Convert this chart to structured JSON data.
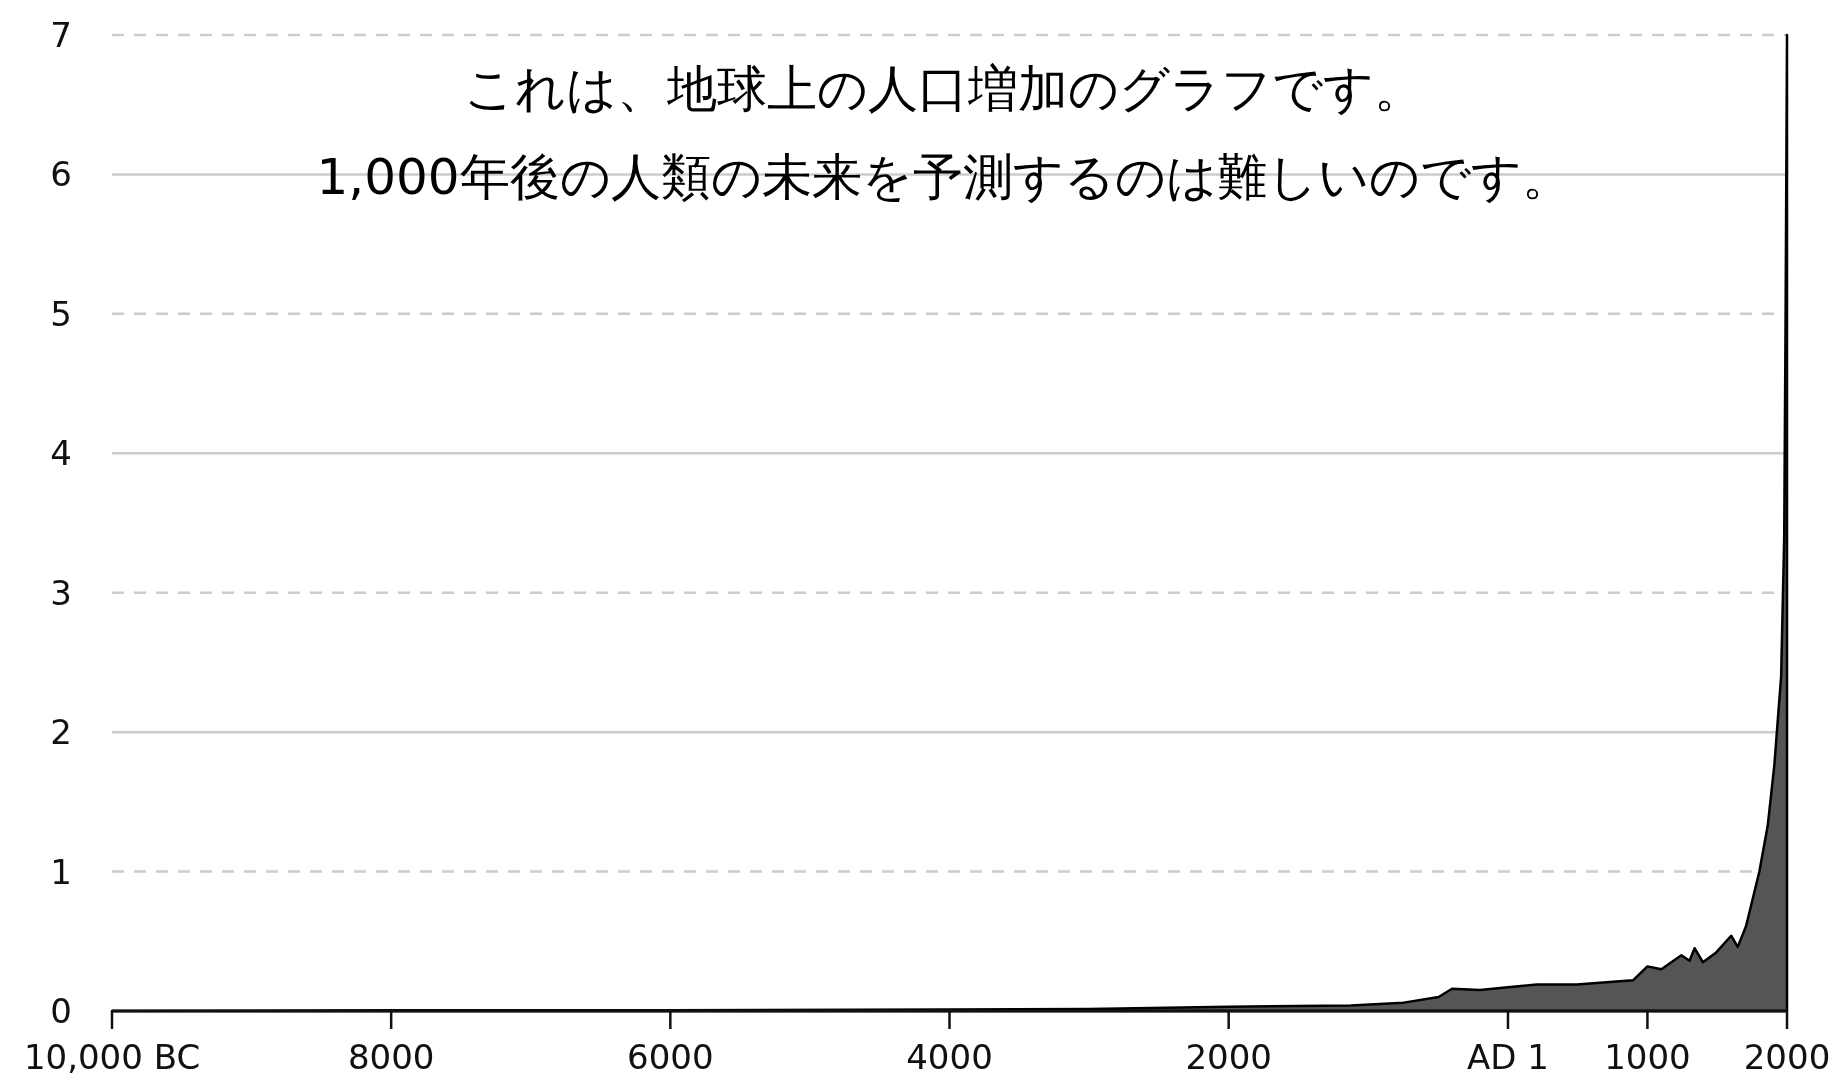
{
  "chart_data": {
    "type": "area",
    "title": "これは、地球上の人口増加のグラフです。",
    "subtitle": "1,000年後の人類の未来を予測するのは難しいのです。",
    "x": [
      -10000,
      -8000,
      -6000,
      -4000,
      -3000,
      -2000,
      -1126,
      -746,
      -496,
      -400,
      -198,
      0,
      207,
      493,
      897,
      1000,
      1100,
      1243,
      1302,
      1338,
      1397,
      1493,
      1600,
      1647,
      1707,
      1802,
      1862,
      1909,
      1958,
      1980,
      1990,
      2000
    ],
    "series": [
      {
        "color": "#555555",
        "values": [
          0,
          0.005,
          0.005,
          0.01,
          0.015,
          0.03,
          0.04,
          0.06,
          0.1,
          0.16,
          0.15,
          0.17,
          0.19,
          0.19,
          0.22,
          0.32,
          0.3,
          0.4,
          0.36,
          0.45,
          0.35,
          0.42,
          0.54,
          0.46,
          0.61,
          1.0,
          1.33,
          1.76,
          2.4,
          3.4,
          5.0,
          7.0
        ]
      }
    ],
    "xlim": [
      -10000,
      2000
    ],
    "xticks": [
      {
        "value": -10000,
        "label": "10,000 BC"
      },
      {
        "value": -8000,
        "label": "8000"
      },
      {
        "value": -6000,
        "label": "6000"
      },
      {
        "value": -4000,
        "label": "4000"
      },
      {
        "value": -2000,
        "label": "2000"
      },
      {
        "value": 1,
        "label": "AD 1"
      },
      1000,
      2000
    ],
    "ylim": [
      0,
      7
    ],
    "yticks": [
      0,
      1,
      2,
      3,
      4,
      5,
      6,
      7
    ],
    "grid": "y"
  }
}
